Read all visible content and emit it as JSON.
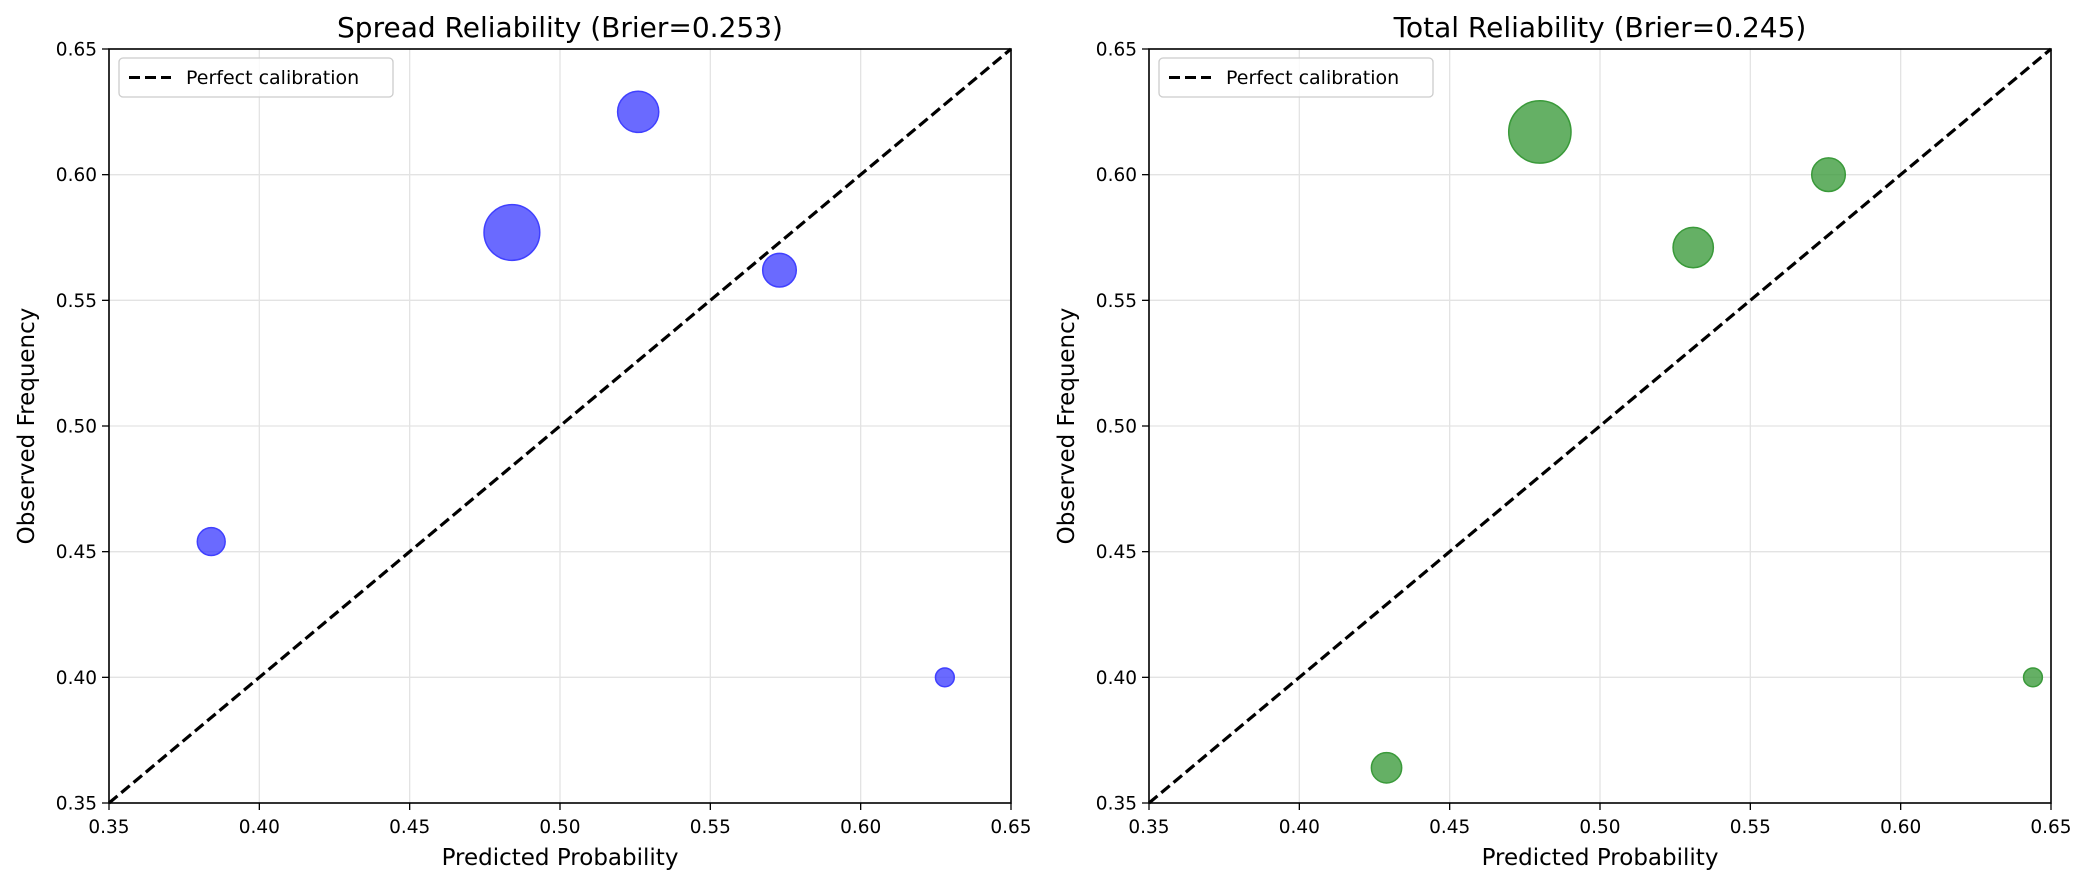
{
  "chart_data": [
    {
      "type": "scatter",
      "title": "Spread Reliability (Brier=0.253)",
      "xlabel": "Predicted Probability",
      "ylabel": "Observed Frequency",
      "xlim": [
        0.35,
        0.65
      ],
      "ylim": [
        0.35,
        0.65
      ],
      "xticks": [
        "0.35",
        "0.40",
        "0.45",
        "0.50",
        "0.55",
        "0.60",
        "0.65"
      ],
      "yticks": [
        "0.35",
        "0.40",
        "0.45",
        "0.50",
        "0.55",
        "0.60",
        "0.65"
      ],
      "grid": true,
      "legend_position": "top-left",
      "legend": [
        "Perfect calibration"
      ],
      "reference_line": {
        "name": "Perfect calibration",
        "style": "dashed",
        "color": "#000000",
        "from": [
          0.35,
          0.35
        ],
        "to": [
          0.65,
          0.65
        ]
      },
      "marker_color": "#4040ff",
      "marker_alpha": 0.78,
      "series": [
        {
          "points": [
            {
              "x": 0.384,
              "y": 0.454,
              "size": 11
            },
            {
              "x": 0.484,
              "y": 0.577,
              "size": 44
            },
            {
              "x": 0.526,
              "y": 0.625,
              "size": 24
            },
            {
              "x": 0.573,
              "y": 0.562,
              "size": 16
            },
            {
              "x": 0.628,
              "y": 0.4,
              "size": 5
            }
          ]
        }
      ]
    },
    {
      "type": "scatter",
      "title": "Total Reliability (Brier=0.245)",
      "xlabel": "Predicted Probability",
      "ylabel": "Observed Frequency",
      "xlim": [
        0.35,
        0.65
      ],
      "ylim": [
        0.35,
        0.65
      ],
      "xticks": [
        "0.35",
        "0.40",
        "0.45",
        "0.50",
        "0.55",
        "0.60",
        "0.65"
      ],
      "yticks": [
        "0.35",
        "0.40",
        "0.45",
        "0.50",
        "0.55",
        "0.60",
        "0.65"
      ],
      "grid": true,
      "legend_position": "top-left",
      "legend": [
        "Perfect calibration"
      ],
      "reference_line": {
        "name": "Perfect calibration",
        "style": "dashed",
        "color": "#000000",
        "from": [
          0.35,
          0.35
        ],
        "to": [
          0.65,
          0.65
        ]
      },
      "marker_color": "#3a9a3a",
      "marker_alpha": 0.78,
      "series": [
        {
          "points": [
            {
              "x": 0.429,
              "y": 0.364,
              "size": 13
            },
            {
              "x": 0.48,
              "y": 0.617,
              "size": 55
            },
            {
              "x": 0.531,
              "y": 0.571,
              "size": 23
            },
            {
              "x": 0.576,
              "y": 0.6,
              "size": 16
            },
            {
              "x": 0.644,
              "y": 0.4,
              "size": 5
            }
          ]
        }
      ]
    }
  ]
}
